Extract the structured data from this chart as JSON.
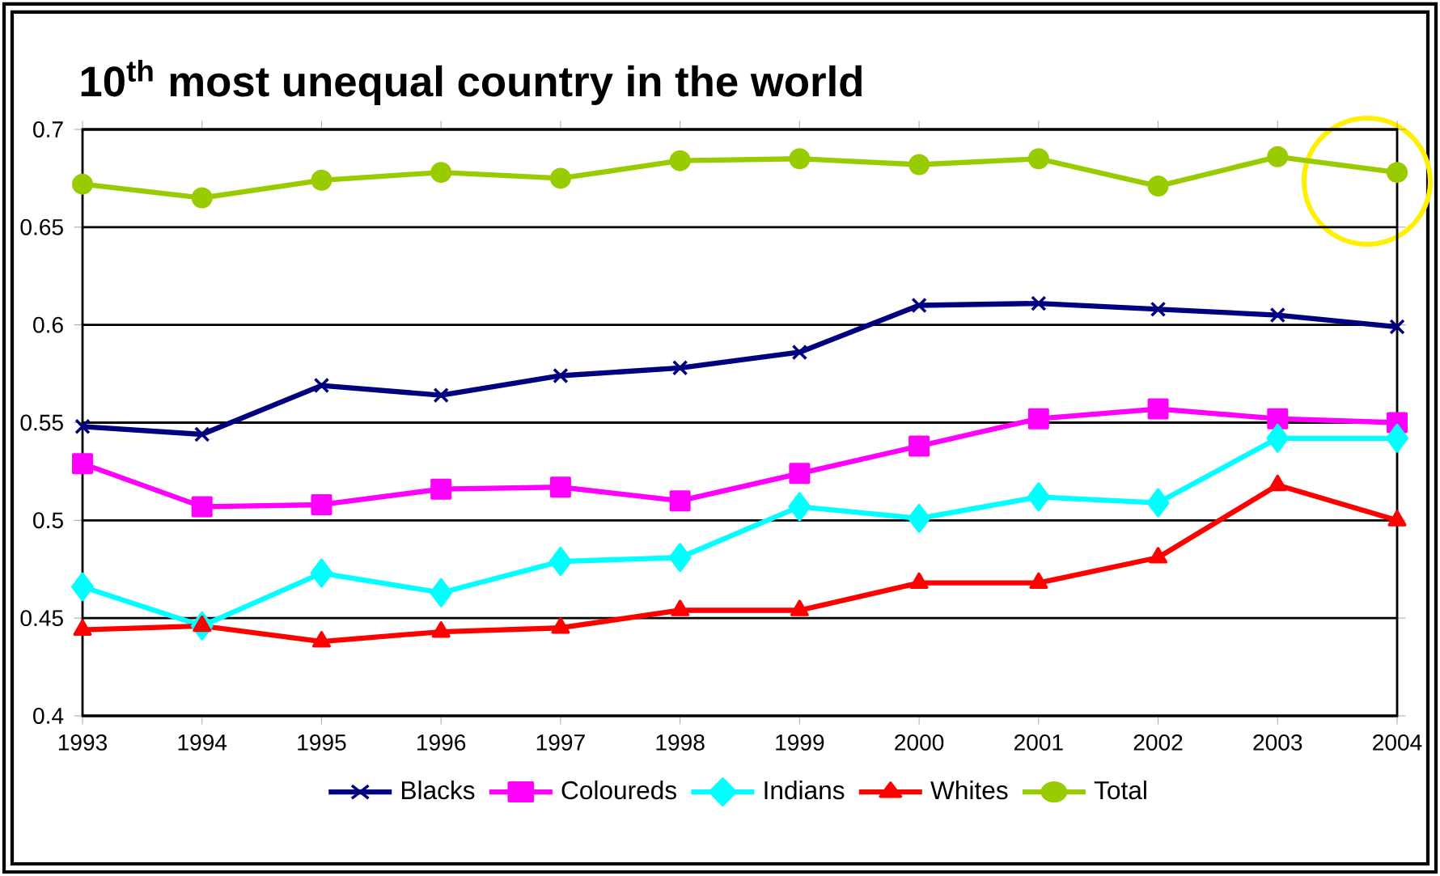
{
  "chart_data": {
    "type": "line",
    "title": "10$^{th}$ most unequal country in the world",
    "x": [
      1993,
      1994,
      1995,
      1996,
      1997,
      1998,
      1999,
      2000,
      2001,
      2002,
      2003,
      2004
    ],
    "series": [
      {
        "name": "Blacks",
        "color": "#000080",
        "marker": "cross",
        "values": [
          0.548,
          0.544,
          0.569,
          0.564,
          0.574,
          0.578,
          0.586,
          0.61,
          0.611,
          0.608,
          0.605,
          0.599
        ]
      },
      {
        "name": "Coloureds",
        "color": "#ff00ff",
        "marker": "square",
        "values": [
          0.529,
          0.507,
          0.508,
          0.516,
          0.517,
          0.51,
          0.524,
          0.538,
          0.552,
          0.557,
          0.552,
          0.55
        ]
      },
      {
        "name": "Indians",
        "color": "#00ffff",
        "marker": "diamond",
        "values": [
          0.466,
          0.446,
          0.473,
          0.463,
          0.479,
          0.481,
          0.507,
          0.501,
          0.512,
          0.509,
          0.542,
          0.542
        ]
      },
      {
        "name": "Whites",
        "color": "#ff0000",
        "marker": "triangle",
        "values": [
          0.444,
          0.446,
          0.438,
          0.443,
          0.445,
          0.454,
          0.454,
          0.468,
          0.468,
          0.481,
          0.518,
          0.5
        ]
      },
      {
        "name": "Total",
        "color": "#99cc00",
        "marker": "circle",
        "values": [
          0.672,
          0.665,
          0.674,
          0.678,
          0.675,
          0.684,
          0.685,
          0.682,
          0.685,
          0.671,
          0.686,
          0.678
        ]
      }
    ],
    "xlim": [
      1993,
      2004
    ],
    "ylim": [
      0.4,
      0.7
    ],
    "xticks": [
      1993,
      1994,
      1995,
      1996,
      1997,
      1998,
      1999,
      2000,
      2001,
      2002,
      2003,
      2004
    ],
    "yticks": [
      0.4,
      0.45,
      0.5,
      0.55,
      0.6,
      0.65,
      0.7
    ],
    "grid": "y",
    "legend": "bottom",
    "line_style": "solid"
  }
}
